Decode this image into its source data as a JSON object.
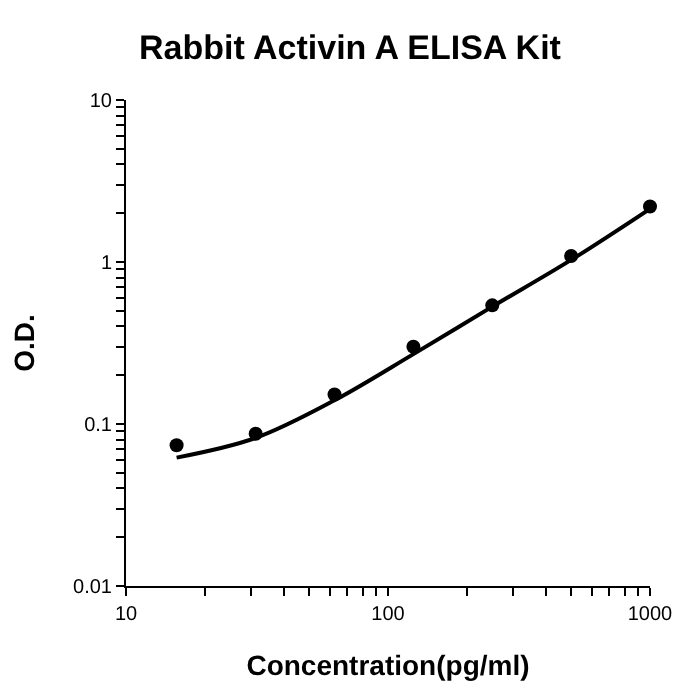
{
  "chart_data": {
    "type": "scatter",
    "title": "Rabbit Activin A ELISA Kit",
    "xlabel": "Concentration(pg/ml)",
    "ylabel": "O.D.",
    "log": "xy",
    "xlim": [
      10,
      1000
    ],
    "ylim": [
      0.01,
      10
    ],
    "xticks": [
      10,
      {
        "value": 20,
        "label": null
      },
      {
        "value": 30,
        "label": null
      },
      {
        "value": 40,
        "label": null
      },
      {
        "value": 50,
        "label": null
      },
      {
        "value": 60,
        "label": null
      },
      {
        "value": 70,
        "label": null
      },
      {
        "value": 80,
        "label": null
      },
      {
        "value": 90,
        "label": null
      },
      100,
      {
        "value": 200,
        "label": null
      },
      {
        "value": 300,
        "label": null
      },
      {
        "value": 400,
        "label": null
      },
      {
        "value": 500,
        "label": null
      },
      {
        "value": 600,
        "label": null
      },
      {
        "value": 700,
        "label": null
      },
      {
        "value": 800,
        "label": null
      },
      {
        "value": 900,
        "label": null
      },
      1000
    ],
    "yticks": [
      0.01,
      {
        "value": 0.02,
        "label": null
      },
      {
        "value": 0.03,
        "label": null
      },
      {
        "value": 0.04,
        "label": null
      },
      {
        "value": 0.05,
        "label": null
      },
      {
        "value": 0.06,
        "label": null
      },
      {
        "value": 0.07,
        "label": null
      },
      {
        "value": 0.08,
        "label": null
      },
      {
        "value": 0.09,
        "label": null
      },
      0.1,
      {
        "value": 0.2,
        "label": null
      },
      {
        "value": 0.3,
        "label": null
      },
      {
        "value": 0.4,
        "label": null
      },
      {
        "value": 0.5,
        "label": null
      },
      {
        "value": 0.6,
        "label": null
      },
      {
        "value": 0.7,
        "label": null
      },
      {
        "value": 0.8,
        "label": null
      },
      {
        "value": 0.9,
        "label": null
      },
      1,
      {
        "value": 2,
        "label": null
      },
      {
        "value": 3,
        "label": null
      },
      {
        "value": 4,
        "label": null
      },
      {
        "value": 5,
        "label": null
      },
      {
        "value": 6,
        "label": null
      },
      {
        "value": 7,
        "label": null
      },
      {
        "value": 8,
        "label": null
      },
      {
        "value": 9,
        "label": null
      },
      10
    ],
    "series": [
      {
        "marker": "circle",
        "color": "#000000",
        "x": [
          15.6,
          31.25,
          62.5,
          125,
          250,
          500,
          1000
        ],
        "values": [
          0.074,
          0.087,
          0.152,
          0.3,
          0.54,
          1.09,
          2.2
        ]
      },
      {
        "type": "line",
        "marker": "none",
        "line_style": "solid",
        "color": "#000000",
        "x": [
          15.6,
          31.25,
          62.5,
          125,
          250,
          500,
          1000
        ],
        "values": [
          0.062,
          0.082,
          0.14,
          0.27,
          0.53,
          1.03,
          2.13
        ]
      }
    ]
  }
}
